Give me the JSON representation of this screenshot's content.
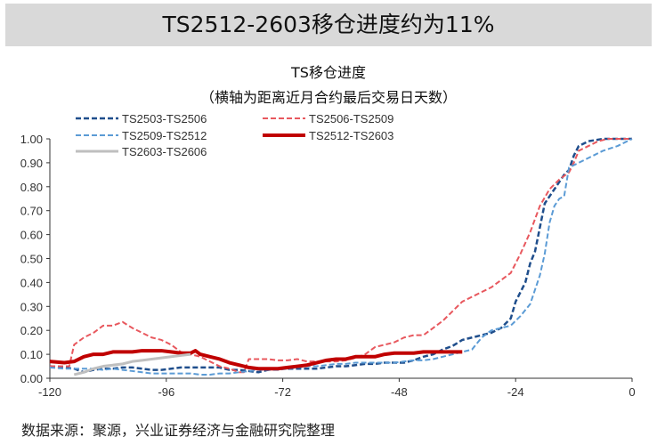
{
  "banner": "TS2512-2603移仓进度约为11%",
  "source": "数据来源：聚源，兴业证券经济与金融研究院整理",
  "chart_data": {
    "type": "line",
    "title": "TS移仓进度",
    "subtitle": "（横轴为距离近月合约最后交易日天数）",
    "xlim": [
      -120,
      0
    ],
    "ylim": [
      0,
      1
    ],
    "xticks": [
      -120,
      -96,
      -72,
      -48,
      -24,
      0
    ],
    "xtick_labels": [
      "-120",
      "-96",
      "-72",
      "-48",
      "-24",
      "0"
    ],
    "yticks": [
      "0.00",
      "0.10",
      "0.20",
      "0.30",
      "0.40",
      "0.50",
      "0.60",
      "0.70",
      "0.80",
      "0.90",
      "1.00"
    ],
    "grid": false,
    "legend": "top-left",
    "series": [
      {
        "name": "TS2503-TS2506",
        "color": "#1f4e8c",
        "dash": true,
        "width": 2.5,
        "x": [
          -120,
          -115,
          -113,
          -111,
          -109,
          -107,
          -105,
          -103,
          -101,
          -99,
          -97,
          -95,
          -93,
          -91,
          -89,
          -87,
          -85,
          -83,
          -81,
          -79,
          -77,
          -75,
          -73,
          -71,
          -69,
          -67,
          -65,
          -63,
          -61,
          -59,
          -57,
          -55,
          -53,
          -51,
          -49,
          -47,
          -45,
          -43,
          -41,
          -39,
          -37,
          -35,
          -33,
          -31,
          -29,
          -27,
          -25,
          -24,
          -22,
          -21,
          -20,
          -19,
          -18,
          -16,
          -14,
          -13,
          -12,
          -11,
          -9,
          -6,
          0
        ],
        "y": [
          0.05,
          0.04,
          0.025,
          0.035,
          0.04,
          0.04,
          0.045,
          0.045,
          0.04,
          0.035,
          0.035,
          0.04,
          0.045,
          0.045,
          0.045,
          0.045,
          0.045,
          0.035,
          0.035,
          0.03,
          0.025,
          0.035,
          0.04,
          0.04,
          0.04,
          0.04,
          0.04,
          0.045,
          0.05,
          0.05,
          0.055,
          0.06,
          0.06,
          0.065,
          0.065,
          0.065,
          0.075,
          0.09,
          0.1,
          0.12,
          0.135,
          0.16,
          0.17,
          0.18,
          0.19,
          0.21,
          0.25,
          0.32,
          0.4,
          0.48,
          0.53,
          0.63,
          0.73,
          0.79,
          0.85,
          0.87,
          0.93,
          0.97,
          0.99,
          1.0,
          1.0
        ]
      },
      {
        "name": "TS2506-TS2509",
        "color": "#e8585e",
        "dash": true,
        "width": 2,
        "x": [
          -120,
          -116,
          -115,
          -113,
          -111,
          -109,
          -107,
          -105,
          -103,
          -101,
          -99,
          -97,
          -95,
          -93,
          -91,
          -89,
          -87,
          -85,
          -83,
          -81,
          -80,
          -79,
          -77,
          -75,
          -73,
          -71,
          -69,
          -67,
          -65,
          -63,
          -61,
          -59,
          -57,
          -55,
          -53,
          -51,
          -49,
          -47,
          -45,
          -43,
          -41,
          -39,
          -37,
          -35,
          -33,
          -31,
          -29,
          -27,
          -25,
          -23,
          -21,
          -19,
          -17,
          -15,
          -13,
          -12,
          -11,
          -9,
          -7,
          -5,
          0
        ],
        "y": [
          0.05,
          0.05,
          0.14,
          0.17,
          0.19,
          0.22,
          0.22,
          0.235,
          0.21,
          0.19,
          0.17,
          0.16,
          0.14,
          0.11,
          0.1,
          0.09,
          0.07,
          0.05,
          0.04,
          0.025,
          0.025,
          0.08,
          0.08,
          0.08,
          0.075,
          0.075,
          0.08,
          0.07,
          0.07,
          0.07,
          0.07,
          0.075,
          0.085,
          0.1,
          0.13,
          0.14,
          0.15,
          0.17,
          0.18,
          0.18,
          0.21,
          0.24,
          0.28,
          0.32,
          0.34,
          0.36,
          0.38,
          0.41,
          0.44,
          0.52,
          0.61,
          0.72,
          0.79,
          0.83,
          0.86,
          0.9,
          0.95,
          0.97,
          0.99,
          1.0,
          1.0
        ]
      },
      {
        "name": "TS2509-TS2512",
        "color": "#5b9bd5",
        "dash": true,
        "width": 2,
        "x": [
          -120,
          -117,
          -115,
          -113,
          -111,
          -109,
          -107,
          -105,
          -103,
          -101,
          -99,
          -97,
          -95,
          -93,
          -91,
          -89,
          -87,
          -85,
          -83,
          -81,
          -79,
          -77,
          -75,
          -73,
          -71,
          -69,
          -67,
          -65,
          -63,
          -61,
          -59,
          -57,
          -55,
          -53,
          -51,
          -49,
          -47,
          -45,
          -43,
          -41,
          -39,
          -37,
          -35,
          -33,
          -31,
          -29,
          -27,
          -25,
          -23,
          -21,
          -19,
          -18,
          -17,
          -16,
          -15,
          -14,
          -13,
          -11,
          -9,
          -6,
          -3,
          0
        ],
        "y": [
          0.045,
          0.04,
          0.04,
          0.04,
          0.04,
          0.035,
          0.04,
          0.035,
          0.03,
          0.025,
          0.02,
          0.02,
          0.02,
          0.02,
          0.02,
          0.015,
          0.015,
          0.02,
          0.02,
          0.025,
          0.03,
          0.035,
          0.035,
          0.035,
          0.04,
          0.045,
          0.05,
          0.05,
          0.055,
          0.06,
          0.06,
          0.065,
          0.065,
          0.065,
          0.065,
          0.065,
          0.07,
          0.075,
          0.075,
          0.08,
          0.09,
          0.1,
          0.11,
          0.12,
          0.17,
          0.2,
          0.21,
          0.22,
          0.26,
          0.31,
          0.43,
          0.52,
          0.65,
          0.72,
          0.75,
          0.76,
          0.88,
          0.9,
          0.92,
          0.95,
          0.97,
          1.0
        ]
      },
      {
        "name": "TS2512-TS2603",
        "color": "#c00000",
        "dash": false,
        "width": 4,
        "x": [
          -120,
          -117,
          -115,
          -113,
          -111,
          -109,
          -107,
          -105,
          -103,
          -101,
          -99,
          -97,
          -95,
          -93,
          -91,
          -90,
          -89,
          -87,
          -85,
          -83,
          -81,
          -79,
          -77,
          -75,
          -73,
          -71,
          -69,
          -67,
          -65,
          -63,
          -61,
          -59,
          -57,
          -55,
          -53,
          -51,
          -49,
          -47,
          -45,
          -43,
          -41,
          -39,
          -37,
          -35
        ],
        "y": [
          0.07,
          0.065,
          0.07,
          0.09,
          0.1,
          0.1,
          0.11,
          0.11,
          0.11,
          0.115,
          0.115,
          0.115,
          0.11,
          0.105,
          0.105,
          0.115,
          0.1,
          0.09,
          0.08,
          0.065,
          0.055,
          0.045,
          0.04,
          0.04,
          0.04,
          0.045,
          0.05,
          0.055,
          0.065,
          0.075,
          0.08,
          0.08,
          0.09,
          0.09,
          0.09,
          0.1,
          0.105,
          0.105,
          0.105,
          0.11,
          0.11,
          0.11,
          0.11,
          0.11
        ]
      },
      {
        "name": "TS2603-TS2606",
        "color": "#bfbfbf",
        "dash": false,
        "width": 3,
        "x": [
          -115,
          -113,
          -111,
          -109,
          -107,
          -105,
          -103,
          -101,
          -99,
          -97,
          -95,
          -93,
          -91
        ],
        "y": [
          0.015,
          0.025,
          0.04,
          0.05,
          0.055,
          0.06,
          0.07,
          0.075,
          0.08,
          0.085,
          0.09,
          0.095,
          0.1
        ]
      }
    ]
  }
}
